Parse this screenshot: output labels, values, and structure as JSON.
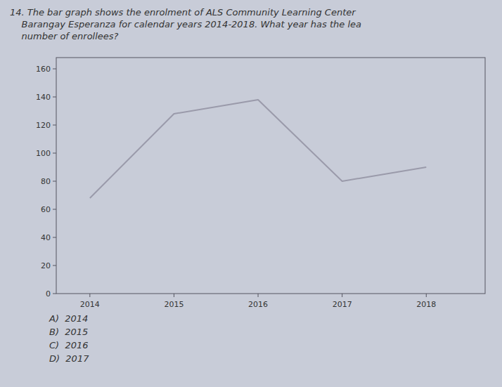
{
  "chart_data": {
    "type": "line",
    "title": [
      "14. The bar graph shows the enrolment of ALS Community Learning Center",
      "    Barangay Esperanza for calendar years 2014-2018. What year has the lea",
      "    number of enrollees?"
    ],
    "x": [
      2014,
      2015,
      2016,
      2017,
      2018
    ],
    "values": [
      68,
      128,
      138,
      80,
      90
    ],
    "color": "#9a9aaa",
    "line_style": "solid",
    "xlim": [
      2013.6,
      2018.7
    ],
    "ylim": [
      0,
      168
    ],
    "xticks": [
      2014,
      2015,
      2016,
      2017,
      2018
    ],
    "yticks": [
      0,
      20,
      40,
      60,
      80,
      100,
      120,
      140,
      160
    ],
    "grid": false,
    "annotations": [
      "A)  2014",
      "B)  2015",
      "C)  2016",
      "D)  2017"
    ]
  }
}
